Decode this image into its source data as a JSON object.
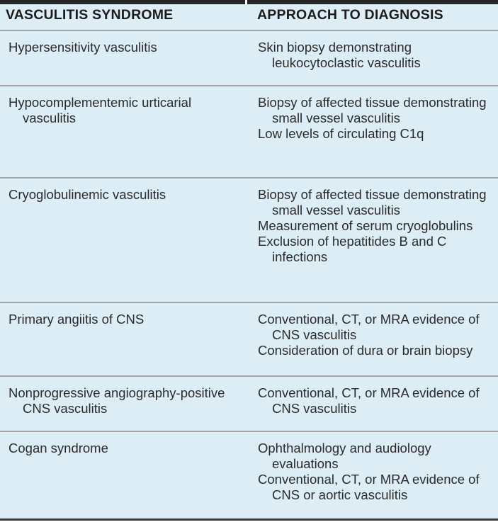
{
  "table": {
    "headers": [
      "VASCULITIS SYNDROME",
      "APPROACH TO DIAGNOSIS"
    ],
    "rows": [
      {
        "syndrome": "Hypersensitivity vasculitis",
        "diagnosis": [
          "Skin biopsy demonstrating leukocytoclastic vasculitis"
        ]
      },
      {
        "syndrome": "Hypocomplementemic urticarial vasculitis",
        "diagnosis": [
          "Biopsy of affected tissue demonstrating small vessel vasculitis",
          "Low levels of circulating C1q"
        ]
      },
      {
        "syndrome": "Cryoglobulinemic vasculitis",
        "diagnosis": [
          "Biopsy of affected tissue demonstrating small vessel vasculitis",
          "Measurement of serum cryoglobulins",
          "Exclusion of hepatitides B and C infections"
        ]
      },
      {
        "syndrome": "Primary angiitis of CNS",
        "diagnosis": [
          "Conventional, CT, or MRA evidence of CNS vasculitis",
          "Consideration of dura or brain biopsy"
        ]
      },
      {
        "syndrome": "Nonprogressive angiography-positive CNS vasculitis",
        "diagnosis": [
          "Conventional, CT, or MRA evidence of CNS vasculitis"
        ]
      },
      {
        "syndrome": "Cogan syndrome",
        "diagnosis": [
          "Ophthalmology and audiology evaluations",
          "Conventional, CT, or MRA evidence of CNS or aortic vasculitis"
        ]
      }
    ]
  }
}
